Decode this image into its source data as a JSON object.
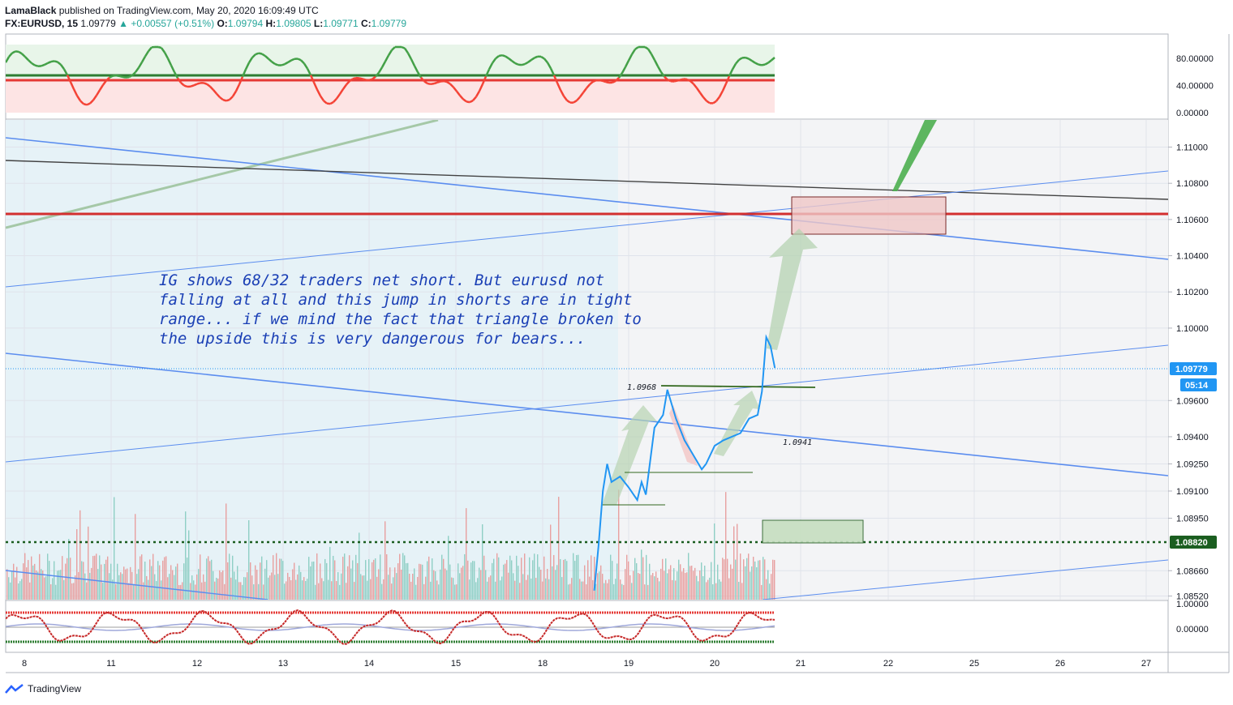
{
  "header": {
    "author": "LamaBlack",
    "published": "published on TradingView.com, May 20, 2020 16:09:49 UTC",
    "symbol": "FX:EURUSD, 15",
    "last": "1.09779",
    "change": "+0.00557 (+0.51%)",
    "o_label": "O:",
    "o_value": "1.09794",
    "h_label": "H:",
    "h_value": "1.09805",
    "l_label": "L:",
    "l_value": "1.09771",
    "c_label": "C:",
    "c_value": "1.09779"
  },
  "footer": {
    "brand": "TradingView"
  },
  "colors": {
    "up": "#26a69a",
    "down": "#ef5350",
    "trend_blue": "#5b8def",
    "price_line": "#2196f3",
    "resistance_red": "#d32f2f",
    "support_green": "#1b5e20",
    "note_text": "#1a3fb5"
  },
  "chart_data": {
    "type": "line",
    "symbol": "FX:EURUSD",
    "timeframe": "15",
    "x_ticks": [
      "8",
      "11",
      "12",
      "13",
      "14",
      "15",
      "18",
      "19",
      "20",
      "21",
      "22",
      "25",
      "26",
      "27"
    ],
    "price_ticks": [
      "1.11000",
      "1.10800",
      "1.10600",
      "1.10400",
      "1.10200",
      "1.10000",
      "1.09600",
      "1.09400",
      "1.09250",
      "1.09100",
      "1.08950",
      "1.08660",
      "1.08520"
    ],
    "price_range": [
      1.085,
      1.1115
    ],
    "current_price": "1.09779",
    "countdown": "05:14",
    "support_level": "1.08820",
    "resistance_level": 1.1064,
    "osc_top_ticks": [
      "80.00000",
      "40.00000",
      "0.00000"
    ],
    "osc_top_range": [
      0,
      100
    ],
    "osc_bottom_ticks": [
      "1.00000",
      "0.00000"
    ],
    "annotations": {
      "note": [
        "IG shows 68/32 traders net short. But eurusd not",
        "falling at all and this jump in shorts are in tight",
        "range... if we mind the fact that triangle broken to",
        "the upside this is very dangerous for bears..."
      ],
      "level_high": "1.0968",
      "level_low": "1.0941"
    },
    "price_series": [
      [
        18.6,
        1.0855
      ],
      [
        18.65,
        1.088
      ],
      [
        18.7,
        1.091
      ],
      [
        18.75,
        1.0925
      ],
      [
        18.8,
        1.0915
      ],
      [
        18.9,
        1.0918
      ],
      [
        19.0,
        1.0912
      ],
      [
        19.1,
        1.0905
      ],
      [
        19.15,
        1.0915
      ],
      [
        19.2,
        1.0908
      ],
      [
        19.3,
        1.0945
      ],
      [
        19.4,
        1.0952
      ],
      [
        19.45,
        1.0966
      ],
      [
        19.55,
        1.095
      ],
      [
        19.65,
        1.0938
      ],
      [
        19.75,
        1.093
      ],
      [
        19.85,
        1.0922
      ],
      [
        19.9,
        1.0925
      ],
      [
        20.0,
        1.0935
      ],
      [
        20.1,
        1.0938
      ],
      [
        20.2,
        1.094
      ],
      [
        20.3,
        1.0942
      ],
      [
        20.4,
        1.095
      ],
      [
        20.5,
        1.0952
      ],
      [
        20.55,
        1.0965
      ],
      [
        20.6,
        1.0995
      ],
      [
        20.65,
        1.099
      ],
      [
        20.7,
        1.0978
      ]
    ]
  }
}
